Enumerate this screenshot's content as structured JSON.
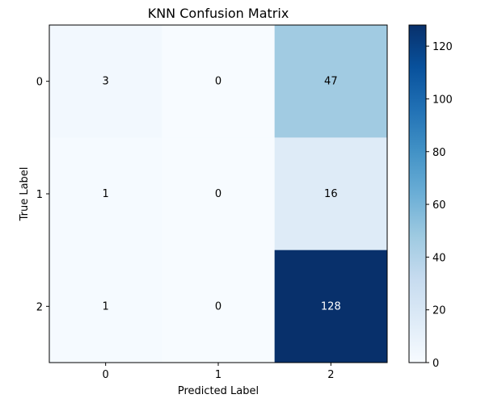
{
  "chart_data": {
    "type": "heatmap",
    "title": "KNN Confusion Matrix",
    "xlabel": "Predicted Label",
    "ylabel": "True Label",
    "x_categories": [
      "0",
      "1",
      "2"
    ],
    "y_categories": [
      "0",
      "1",
      "2"
    ],
    "values": [
      [
        3,
        0,
        47
      ],
      [
        1,
        0,
        16
      ],
      [
        1,
        0,
        128
      ]
    ],
    "colormap": "Blues",
    "colorbar": {
      "range": [
        0,
        128
      ],
      "ticks": [
        0,
        20,
        40,
        60,
        80,
        100,
        120
      ]
    }
  }
}
